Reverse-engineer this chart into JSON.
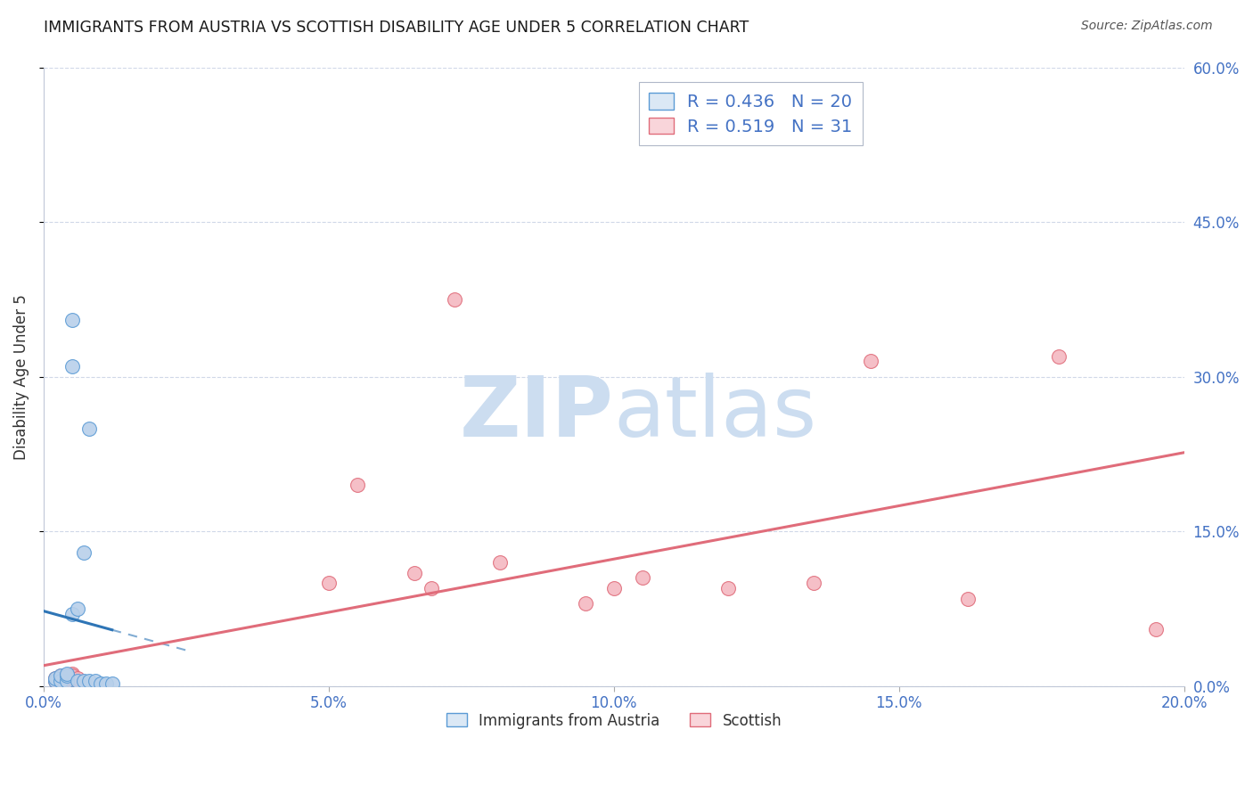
{
  "title": "IMMIGRANTS FROM AUSTRIA VS SCOTTISH DISABILITY AGE UNDER 5 CORRELATION CHART",
  "source": "Source: ZipAtlas.com",
  "ylabel": "Disability Age Under 5",
  "legend_labels": [
    "Immigrants from Austria",
    "Scottish"
  ],
  "blue_R": 0.436,
  "blue_N": 20,
  "pink_R": 0.519,
  "pink_N": 31,
  "xlim": [
    0.0,
    0.2
  ],
  "ylim": [
    0.0,
    0.6
  ],
  "xticks": [
    0.0,
    0.05,
    0.1,
    0.15,
    0.2
  ],
  "yticks": [
    0.0,
    0.15,
    0.3,
    0.45,
    0.6
  ],
  "xtick_labels": [
    "0.0%",
    "5.0%",
    "10.0%",
    "15.0%",
    "20.0%"
  ],
  "ytick_labels": [
    "0.0%",
    "15.0%",
    "30.0%",
    "45.0%",
    "60.0%"
  ],
  "blue_color": "#b8d0ea",
  "blue_edge_color": "#5b9bd5",
  "pink_color": "#f4b8c1",
  "pink_edge_color": "#e06c7a",
  "blue_trend_color": "#2e75b6",
  "pink_trend_color": "#e06c7a",
  "blue_scatter_x": [
    0.002,
    0.002,
    0.003,
    0.003,
    0.004,
    0.004,
    0.004,
    0.005,
    0.005,
    0.005,
    0.006,
    0.006,
    0.007,
    0.007,
    0.008,
    0.008,
    0.009,
    0.01,
    0.011,
    0.012
  ],
  "blue_scatter_y": [
    0.005,
    0.008,
    0.005,
    0.01,
    0.005,
    0.01,
    0.012,
    0.355,
    0.31,
    0.07,
    0.005,
    0.075,
    0.13,
    0.005,
    0.25,
    0.005,
    0.005,
    0.003,
    0.003,
    0.003
  ],
  "pink_scatter_x": [
    0.002,
    0.002,
    0.003,
    0.003,
    0.004,
    0.004,
    0.004,
    0.005,
    0.005,
    0.005,
    0.005,
    0.005,
    0.005,
    0.005,
    0.006,
    0.006,
    0.05,
    0.055,
    0.065,
    0.068,
    0.072,
    0.08,
    0.095,
    0.1,
    0.105,
    0.12,
    0.135,
    0.145,
    0.162,
    0.178,
    0.195
  ],
  "pink_scatter_y": [
    0.005,
    0.008,
    0.005,
    0.01,
    0.005,
    0.008,
    0.01,
    0.005,
    0.01,
    0.008,
    0.01,
    0.012,
    0.008,
    0.01,
    0.005,
    0.008,
    0.1,
    0.195,
    0.11,
    0.095,
    0.375,
    0.12,
    0.08,
    0.095,
    0.105,
    0.095,
    0.1,
    0.315,
    0.085,
    0.32,
    0.055
  ],
  "watermark_zip": "ZIP",
  "watermark_atlas": "atlas",
  "watermark_color": "#ccddf0",
  "background_color": "#ffffff",
  "grid_color": "#d0d8e8",
  "title_color": "#1a1a1a",
  "axis_label_color": "#333333",
  "right_tick_color": "#4472c4",
  "bottom_tick_color": "#4472c4",
  "legend_box_color_blue": "#dbe8f5",
  "legend_box_color_pink": "#f9d5da",
  "legend_border_color": "#b0b8c8"
}
